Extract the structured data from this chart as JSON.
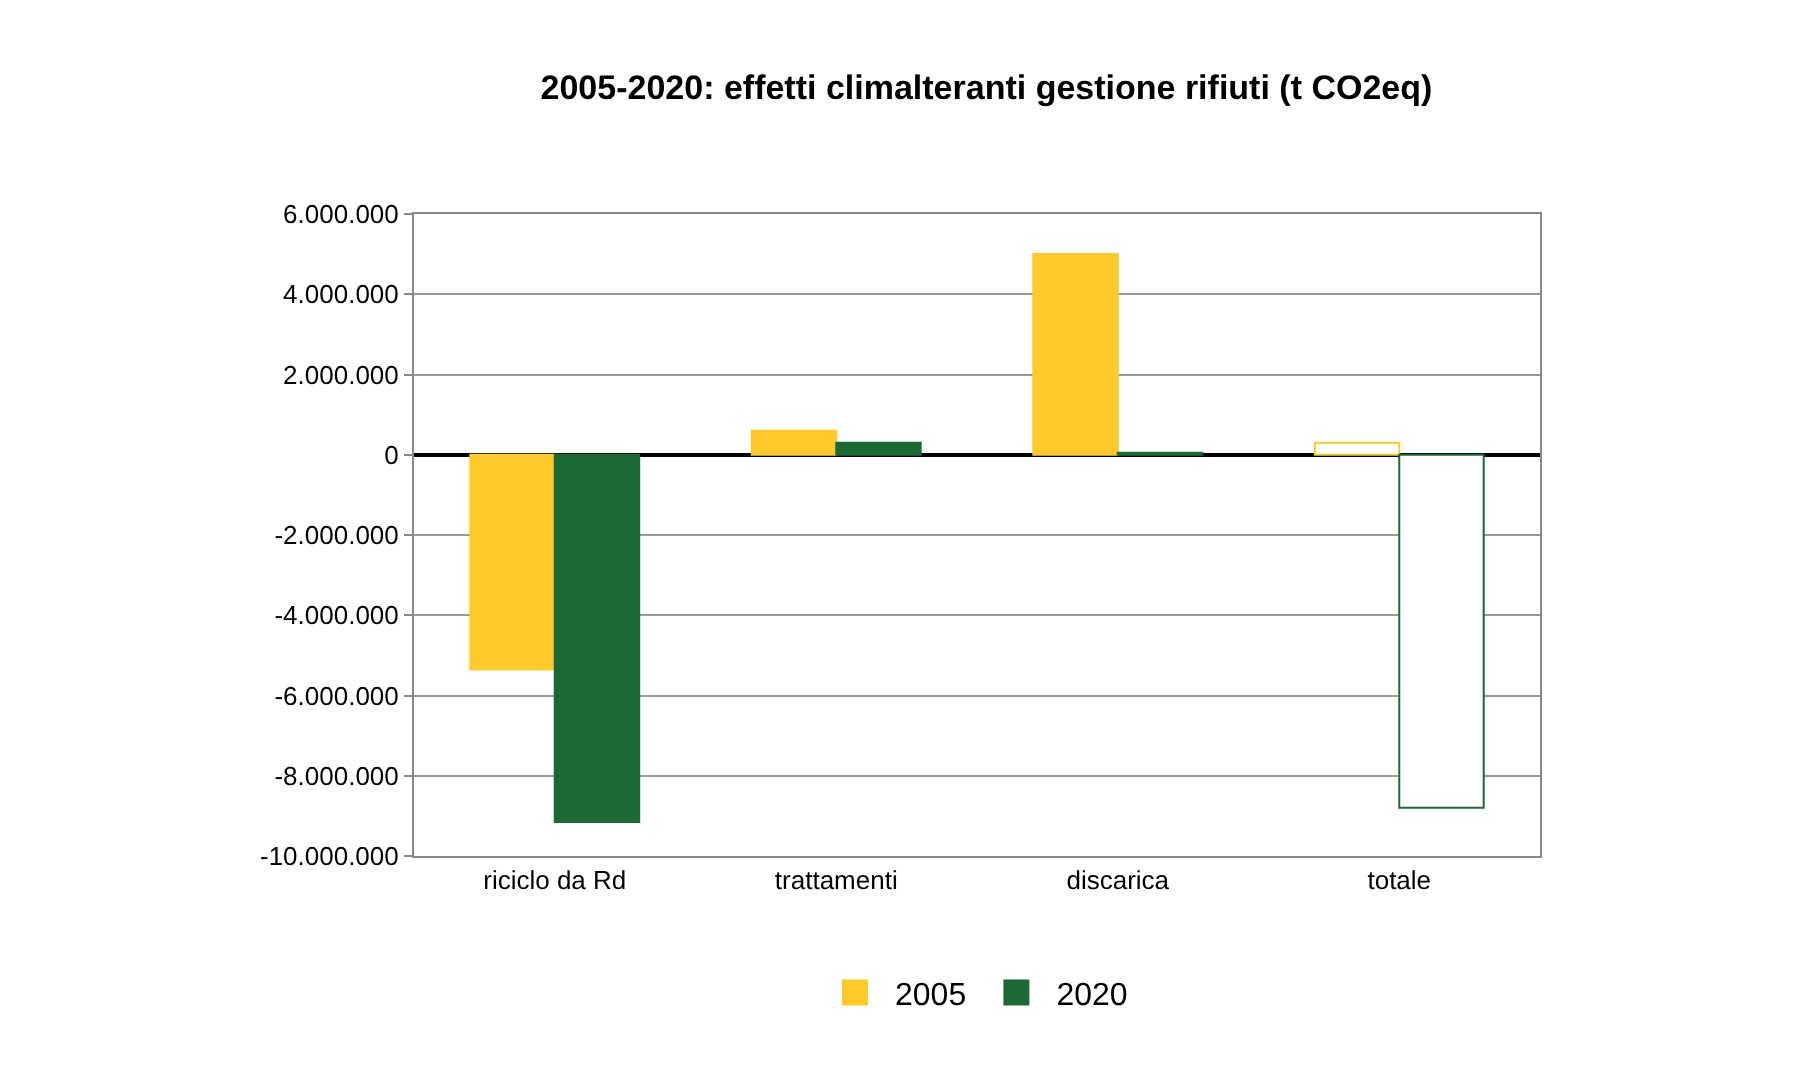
{
  "chart_data": {
    "type": "bar",
    "title": "2005-2020: effetti climalteranti gestione rifiuti (t CO2eq)",
    "categories": [
      "riciclo da Rd",
      "trattamenti",
      "discarica",
      "totale"
    ],
    "series": [
      {
        "name": "2005",
        "color": "#ffc929",
        "colors": [
          "#ffc929",
          "#ffc929",
          "#ffc929",
          "#ffffff"
        ],
        "values": [
          -5350000,
          600000,
          5000000,
          300000
        ]
      },
      {
        "name": "2020",
        "color": "#1b6934",
        "colors": [
          "#1b6934",
          "#1b6934",
          "#1b6934",
          "#ffffff"
        ],
        "values": [
          -9150000,
          300000,
          50000,
          -8800000
        ]
      }
    ],
    "ylim": [
      -10000000,
      6000000
    ],
    "yticks": [
      {
        "value": -10000000,
        "label": "-10.000.000"
      },
      {
        "value": -8000000,
        "label": "-8.000.000"
      },
      {
        "value": -6000000,
        "label": "-6.000.000"
      },
      {
        "value": -4000000,
        "label": "-4.000.000"
      },
      {
        "value": -2000000,
        "label": "-2.000.000"
      },
      0,
      {
        "value": 2000000,
        "label": "2.000.000"
      },
      {
        "value": 4000000,
        "label": "4.000.000"
      },
      {
        "value": 6000000,
        "label": "6.000.000"
      }
    ],
    "grid": "y",
    "legend": "bottom"
  }
}
